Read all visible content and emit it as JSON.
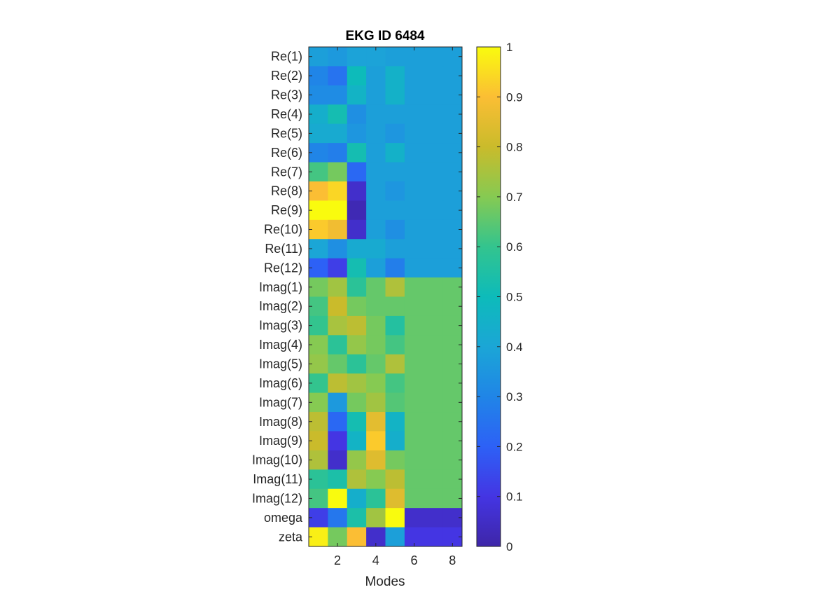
{
  "chart_data": {
    "type": "heatmap",
    "title": "EKG ID 6484",
    "xlabel": "Modes",
    "ylabel": "",
    "x_range": [
      0.5,
      8.5
    ],
    "x_ticks": [
      2,
      4,
      6,
      8
    ],
    "row_labels": [
      "Re(1)",
      "Re(2)",
      "Re(3)",
      "Re(4)",
      "Re(5)",
      "Re(6)",
      "Re(7)",
      "Re(8)",
      "Re(9)",
      "Re(10)",
      "Re(11)",
      "Re(12)",
      "Imag(1)",
      "Imag(2)",
      "Imag(3)",
      "Imag(4)",
      "Imag(5)",
      "Imag(6)",
      "Imag(7)",
      "Imag(8)",
      "Imag(9)",
      "Imag(10)",
      "Imag(11)",
      "Imag(12)",
      "omega",
      "zeta"
    ],
    "columns": [
      1,
      2,
      3,
      4,
      5,
      6,
      7,
      8
    ],
    "values": [
      [
        0.38,
        0.36,
        0.39,
        0.39,
        0.38,
        0.38,
        0.38,
        0.38
      ],
      [
        0.3,
        0.25,
        0.5,
        0.38,
        0.45,
        0.38,
        0.38,
        0.38
      ],
      [
        0.32,
        0.32,
        0.46,
        0.38,
        0.45,
        0.38,
        0.38,
        0.38
      ],
      [
        0.44,
        0.52,
        0.33,
        0.38,
        0.38,
        0.38,
        0.38,
        0.38
      ],
      [
        0.42,
        0.42,
        0.35,
        0.38,
        0.35,
        0.38,
        0.38,
        0.38
      ],
      [
        0.3,
        0.28,
        0.52,
        0.38,
        0.45,
        0.38,
        0.38,
        0.38
      ],
      [
        0.62,
        0.68,
        0.22,
        0.38,
        0.38,
        0.38,
        0.38,
        0.38
      ],
      [
        0.9,
        0.94,
        0.06,
        0.38,
        0.35,
        0.38,
        0.38,
        0.38
      ],
      [
        1.0,
        1.0,
        0.02,
        0.38,
        0.38,
        0.38,
        0.38,
        0.38
      ],
      [
        0.92,
        0.88,
        0.06,
        0.38,
        0.33,
        0.38,
        0.38,
        0.38
      ],
      [
        0.4,
        0.33,
        0.42,
        0.42,
        0.38,
        0.38,
        0.38,
        0.38
      ],
      [
        0.2,
        0.12,
        0.52,
        0.38,
        0.28,
        0.38,
        0.38,
        0.38
      ],
      [
        0.68,
        0.74,
        0.58,
        0.66,
        0.76,
        0.66,
        0.66,
        0.66
      ],
      [
        0.62,
        0.8,
        0.68,
        0.66,
        0.66,
        0.66,
        0.66,
        0.66
      ],
      [
        0.6,
        0.75,
        0.78,
        0.68,
        0.56,
        0.66,
        0.66,
        0.66
      ],
      [
        0.7,
        0.58,
        0.72,
        0.68,
        0.62,
        0.66,
        0.66,
        0.66
      ],
      [
        0.72,
        0.66,
        0.58,
        0.66,
        0.76,
        0.66,
        0.66,
        0.66
      ],
      [
        0.6,
        0.78,
        0.74,
        0.7,
        0.62,
        0.66,
        0.66,
        0.66
      ],
      [
        0.7,
        0.36,
        0.68,
        0.74,
        0.64,
        0.66,
        0.66,
        0.66
      ],
      [
        0.78,
        0.22,
        0.52,
        0.85,
        0.46,
        0.66,
        0.66,
        0.66
      ],
      [
        0.8,
        0.1,
        0.46,
        0.92,
        0.44,
        0.66,
        0.66,
        0.66
      ],
      [
        0.76,
        0.06,
        0.72,
        0.84,
        0.68,
        0.66,
        0.66,
        0.66
      ],
      [
        0.58,
        0.54,
        0.76,
        0.7,
        0.78,
        0.66,
        0.66,
        0.66
      ],
      [
        0.62,
        1.0,
        0.44,
        0.58,
        0.84,
        0.66,
        0.66,
        0.66
      ],
      [
        0.12,
        0.26,
        0.54,
        0.74,
        1.0,
        0.06,
        0.06,
        0.06
      ],
      [
        0.98,
        0.68,
        0.9,
        0.06,
        0.38,
        0.1,
        0.1,
        0.1
      ]
    ],
    "colorbar": {
      "range": [
        0,
        1
      ],
      "ticks": [
        0,
        0.1,
        0.2,
        0.3,
        0.4,
        0.5,
        0.6,
        0.7,
        0.8,
        0.9,
        1
      ],
      "tick_labels": [
        "0",
        "0.1",
        "0.2",
        "0.3",
        "0.4",
        "0.5",
        "0.6",
        "0.7",
        "0.8",
        "0.9",
        "1"
      ],
      "colormap": "parula",
      "colormap_stops": [
        "#3e26a8",
        "#4435e3",
        "#2d61f6",
        "#2085e7",
        "#1ba6d6",
        "#0dbbba",
        "#33c48e",
        "#86ca52",
        "#cabb2b",
        "#fbbe34",
        "#f9fb0e"
      ]
    },
    "grid": false,
    "legend": "none"
  }
}
